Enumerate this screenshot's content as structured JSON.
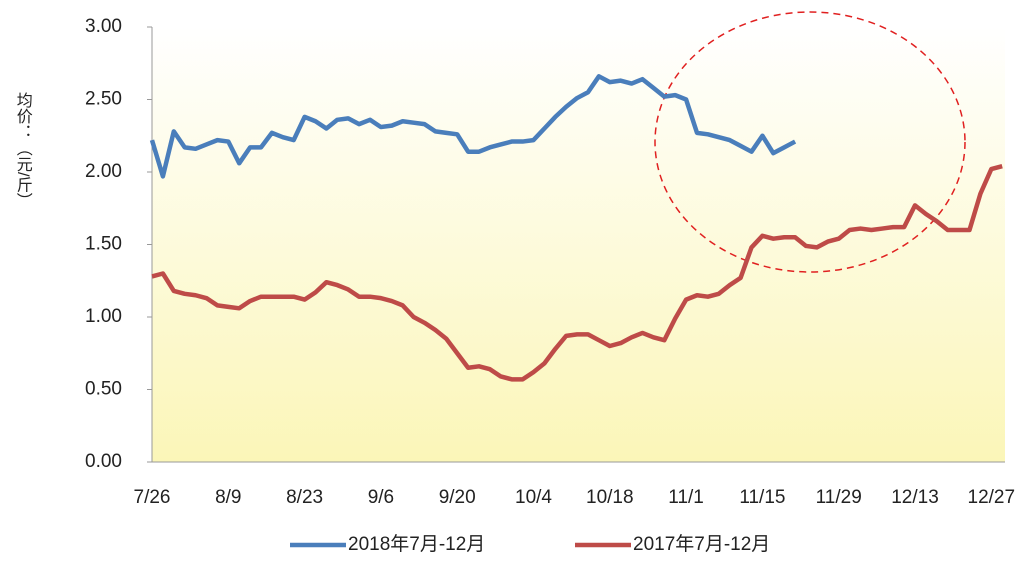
{
  "chart_data": {
    "type": "line",
    "y_label": "均价：（元/斤）",
    "categories": [
      "7/26",
      null,
      null,
      null,
      null,
      null,
      null,
      "8/9",
      null,
      null,
      null,
      null,
      null,
      null,
      "8/23",
      null,
      null,
      null,
      null,
      null,
      null,
      "9/6",
      null,
      null,
      null,
      null,
      null,
      null,
      "9/20",
      null,
      null,
      null,
      null,
      null,
      null,
      "10/4",
      null,
      null,
      null,
      null,
      null,
      null,
      "10/18",
      null,
      null,
      null,
      null,
      null,
      null,
      "11/1",
      null,
      null,
      null,
      null,
      null,
      null,
      "11/15",
      null,
      null,
      null,
      null,
      null,
      null,
      "11/29",
      null,
      null,
      null,
      null,
      null,
      null,
      "12/13",
      null,
      null,
      null,
      null,
      null,
      null,
      "12/27",
      null
    ],
    "series": [
      {
        "name": "2018年7月-12月",
        "color": "#4a7ebb",
        "values": [
          2.22,
          1.97,
          2.28,
          2.17,
          2.16,
          2.19,
          2.22,
          2.21,
          2.06,
          2.17,
          2.17,
          2.27,
          2.24,
          2.22,
          2.38,
          2.35,
          2.3,
          2.36,
          2.37,
          2.33,
          2.36,
          2.31,
          2.32,
          2.35,
          2.34,
          2.33,
          2.28,
          2.27,
          2.26,
          2.14,
          2.14,
          2.17,
          2.19,
          2.21,
          2.21,
          2.22,
          2.3,
          2.38,
          2.45,
          2.51,
          2.55,
          2.66,
          2.62,
          2.63,
          2.61,
          2.64,
          2.58,
          2.52,
          2.53,
          2.5,
          2.27,
          2.26,
          2.24,
          2.22,
          2.18,
          2.14,
          2.25,
          2.13,
          2.17,
          2.21,
          null,
          null,
          null,
          null,
          null,
          null,
          null,
          null,
          null,
          null,
          null,
          null,
          null,
          null,
          null,
          null,
          null,
          null,
          null
        ]
      },
      {
        "name": "2017年7月-12月",
        "color": "#be4b48",
        "values": [
          1.28,
          1.3,
          1.18,
          1.16,
          1.15,
          1.13,
          1.08,
          1.07,
          1.06,
          1.11,
          1.14,
          1.14,
          1.14,
          1.14,
          1.12,
          1.17,
          1.24,
          1.22,
          1.19,
          1.14,
          1.14,
          1.13,
          1.11,
          1.08,
          1.0,
          0.96,
          0.91,
          0.85,
          0.75,
          0.65,
          0.66,
          0.64,
          0.59,
          0.57,
          0.57,
          0.62,
          0.68,
          0.78,
          0.87,
          0.88,
          0.88,
          0.84,
          0.8,
          0.82,
          0.86,
          0.89,
          0.86,
          0.84,
          0.99,
          1.12,
          1.15,
          1.14,
          1.16,
          1.22,
          1.27,
          1.48,
          1.56,
          1.54,
          1.55,
          1.55,
          1.49,
          1.48,
          1.52,
          1.54,
          1.6,
          1.61,
          1.6,
          1.61,
          1.62,
          1.62,
          1.77,
          1.71,
          1.66,
          1.6,
          1.6,
          1.6,
          1.85,
          2.02,
          2.04
        ]
      }
    ],
    "ylim": [
      0,
      3
    ],
    "yticks": [
      {
        "value": 0,
        "label": "0.00"
      },
      {
        "value": 0.5,
        "label": "0.50"
      },
      {
        "value": 1,
        "label": "1.00"
      },
      {
        "value": 1.5,
        "label": "1.50"
      },
      {
        "value": 2,
        "label": "2.00"
      },
      {
        "value": 2.5,
        "label": "2.50"
      },
      {
        "value": 3,
        "label": "3.00"
      }
    ],
    "grid": false,
    "legend": "bottom"
  }
}
